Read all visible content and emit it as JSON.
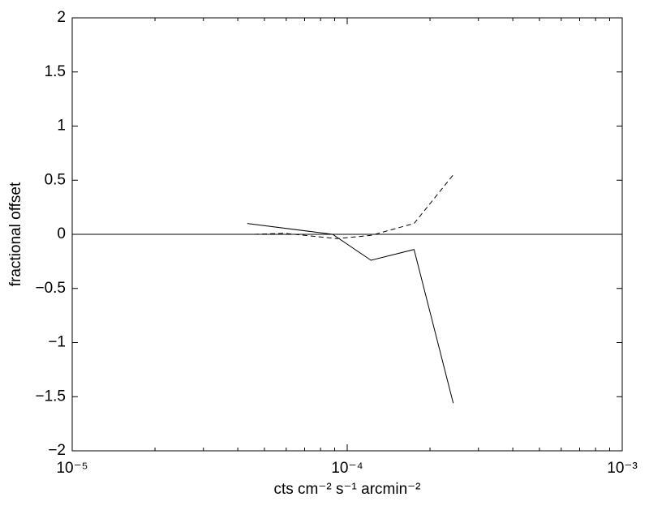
{
  "chart_data": {
    "type": "line",
    "x_label": "cts cm⁻² s⁻¹ arcmin⁻²",
    "y_label": "fractional offset",
    "x_scale": "log",
    "xlim": [
      1e-05,
      0.001
    ],
    "xticks": [
      {
        "value": 1e-05,
        "label": "10⁻⁵"
      },
      {
        "value": 0.0001,
        "label": "10⁻⁴"
      },
      {
        "value": 0.001,
        "label": "10⁻³"
      }
    ],
    "ylim": [
      -2,
      2
    ],
    "yticks": [
      {
        "value": -2,
        "label": "−2"
      },
      {
        "value": -1.5,
        "label": "−1.5"
      },
      {
        "value": -1,
        "label": "−1"
      },
      {
        "value": -0.5,
        "label": "−0.5"
      },
      0,
      0.5,
      1,
      1.5,
      2
    ],
    "hlines": [
      0
    ],
    "grid": false,
    "series": [
      {
        "color": "#000000",
        "dash": "solid",
        "x": [
          4.33e-05,
          8.85e-05,
          0.000122,
          0.000175,
          0.000243
        ],
        "values": [
          0.1,
          0,
          -0.24,
          -0.14,
          -1.56
        ]
      },
      {
        "color": "#000000",
        "dash": "dashed",
        "x": [
          4.58e-05,
          5.9e-05,
          9.16e-05,
          0.000122,
          0.000175,
          0.000243
        ],
        "values": [
          0,
          0.01,
          -0.04,
          -0.01,
          0.1,
          0.55
        ]
      }
    ]
  }
}
